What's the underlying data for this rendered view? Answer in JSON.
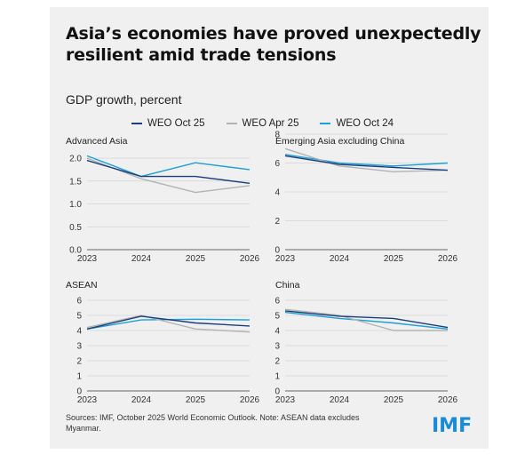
{
  "title_line1": "Asia’s economies have proved unexpectedly",
  "title_line2": "resilient amid trade tensions",
  "subtitle": "GDP growth, percent",
  "legend": [
    {
      "name": "WEO Oct 25",
      "color": "#1b3f7a"
    },
    {
      "name": "WEO Apr 25",
      "color": "#b3b3b3"
    },
    {
      "name": "WEO Oct 24",
      "color": "#1e9fd6"
    }
  ],
  "source": "Sources: IMF, October 2025 World Economic Outlook. Note: ASEAN data excludes Myanmar.",
  "logo": "IMF",
  "chart_data": [
    {
      "type": "line",
      "title": "Advanced Asia",
      "x": [
        "2023",
        "2024",
        "2025",
        "2026"
      ],
      "ylim": [
        0,
        2.0
      ],
      "yticks": [
        "0.0",
        "0.5",
        "1.0",
        "1.5",
        "2.0"
      ],
      "series": [
        {
          "name": "WEO Oct 25",
          "values": [
            1.95,
            1.6,
            1.6,
            1.45
          ]
        },
        {
          "name": "WEO Apr 25",
          "values": [
            2.0,
            1.55,
            1.25,
            1.4
          ]
        },
        {
          "name": "WEO Oct 24",
          "values": [
            2.05,
            1.6,
            1.9,
            1.75
          ]
        }
      ]
    },
    {
      "type": "line",
      "title": "Emerging Asia excluding China",
      "x": [
        "2023",
        "2024",
        "2025",
        "2026"
      ],
      "ylim": [
        0,
        8
      ],
      "yticks": [
        "0",
        "2",
        "4",
        "6",
        "8"
      ],
      "series": [
        {
          "name": "WEO Oct 25",
          "values": [
            6.5,
            5.9,
            5.7,
            5.5
          ]
        },
        {
          "name": "WEO Apr 25",
          "values": [
            7.0,
            5.8,
            5.4,
            5.5
          ]
        },
        {
          "name": "WEO Oct 24",
          "values": [
            6.6,
            6.0,
            5.8,
            6.0
          ]
        }
      ]
    },
    {
      "type": "line",
      "title": "ASEAN",
      "x": [
        "2023",
        "2024",
        "2025",
        "2026"
      ],
      "ylim": [
        0,
        6
      ],
      "yticks": [
        "0",
        "1",
        "2",
        "3",
        "4",
        "5",
        "6"
      ],
      "series": [
        {
          "name": "WEO Oct 25",
          "values": [
            4.1,
            4.95,
            4.5,
            4.3
          ]
        },
        {
          "name": "WEO Apr 25",
          "values": [
            4.2,
            5.0,
            4.1,
            3.9
          ]
        },
        {
          "name": "WEO Oct 24",
          "values": [
            4.1,
            4.7,
            4.75,
            4.7
          ]
        }
      ]
    },
    {
      "type": "line",
      "title": "China",
      "x": [
        "2023",
        "2024",
        "2025",
        "2026"
      ],
      "ylim": [
        0,
        6
      ],
      "yticks": [
        "0",
        "1",
        "2",
        "3",
        "4",
        "5",
        "6"
      ],
      "series": [
        {
          "name": "WEO Oct 25",
          "values": [
            5.3,
            4.95,
            4.8,
            4.2
          ]
        },
        {
          "name": "WEO Apr 25",
          "values": [
            5.4,
            5.0,
            4.0,
            4.0
          ]
        },
        {
          "name": "WEO Oct 24",
          "values": [
            5.2,
            4.8,
            4.5,
            4.1
          ]
        }
      ]
    }
  ]
}
